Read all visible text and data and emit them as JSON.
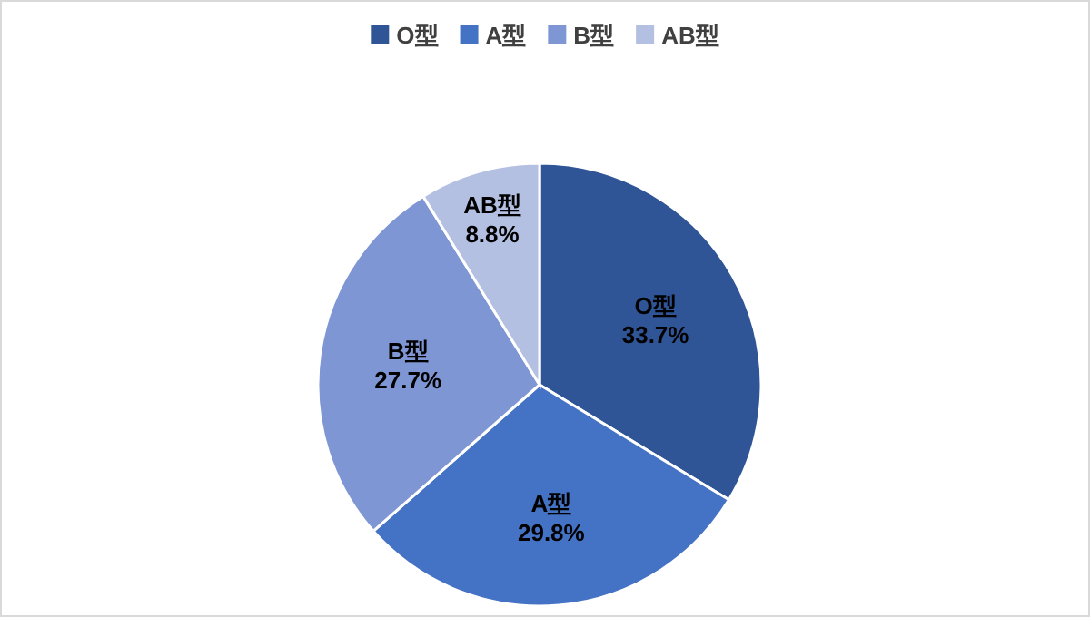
{
  "chart_data": {
    "type": "pie",
    "categories": [
      "O型",
      "A型",
      "B型",
      "AB型"
    ],
    "values": [
      33.7,
      29.8,
      27.7,
      8.8
    ],
    "colors": [
      "#2f5597",
      "#4472c4",
      "#7f96d4",
      "#b4c0e2"
    ],
    "value_labels": [
      "33.7%",
      "29.8%",
      "27.7%",
      "8.8%"
    ],
    "legend": "top"
  }
}
